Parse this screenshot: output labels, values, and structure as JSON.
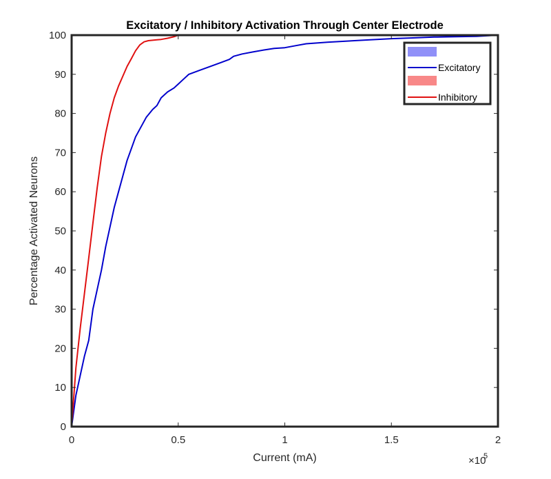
{
  "chart_data": {
    "type": "line",
    "title": "Excitatory / Inhibitory Activation Through Center Electrode",
    "xlabel": "Current (mA)",
    "ylabel": "Percentage Activated Neurons",
    "x_exponent_label": "×10",
    "x_exponent_power": "5",
    "xlim": [
      0,
      2
    ],
    "ylim": [
      0,
      100
    ],
    "x_ticks": [
      0,
      0.5,
      1,
      1.5,
      2
    ],
    "x_tick_labels": [
      "0",
      "0.5",
      "1",
      "1.5",
      "2"
    ],
    "y_ticks": [
      0,
      10,
      20,
      30,
      40,
      50,
      60,
      70,
      80,
      90,
      100
    ],
    "y_tick_labels": [
      "0",
      "10",
      "20",
      "30",
      "40",
      "50",
      "60",
      "70",
      "80",
      "90",
      "100"
    ],
    "grid": false,
    "legend_position": "top-right",
    "legend": [
      {
        "label": "",
        "kind": "patch",
        "color": "#9090f8"
      },
      {
        "label": "Excitatory",
        "kind": "line",
        "color": "#0000cc"
      },
      {
        "label": "",
        "kind": "patch",
        "color": "#f88888"
      },
      {
        "label": "Inhibitory",
        "kind": "line",
        "color": "#e01010"
      }
    ],
    "series": [
      {
        "name": "Excitatory",
        "color": "#0000cc",
        "x": [
          0,
          0.02,
          0.04,
          0.06,
          0.08,
          0.1,
          0.12,
          0.14,
          0.16,
          0.18,
          0.2,
          0.22,
          0.24,
          0.26,
          0.28,
          0.3,
          0.32,
          0.35,
          0.38,
          0.4,
          0.42,
          0.45,
          0.48,
          0.5,
          0.52,
          0.55,
          0.6,
          0.65,
          0.7,
          0.74,
          0.76,
          0.8,
          0.85,
          0.9,
          0.95,
          1.0,
          1.05,
          1.1,
          1.2,
          1.3,
          1.4,
          1.5,
          1.6,
          1.7,
          1.8,
          1.9,
          2.0
        ],
        "y": [
          0,
          8,
          13,
          18,
          22,
          30,
          35,
          40,
          46,
          51,
          56,
          60,
          64,
          68,
          71,
          74,
          76,
          79,
          81,
          82,
          84,
          85.5,
          86.5,
          87.5,
          88.5,
          90,
          91,
          92,
          93,
          93.8,
          94.6,
          95.2,
          95.7,
          96.2,
          96.6,
          96.8,
          97.3,
          97.8,
          98.2,
          98.5,
          98.8,
          99.1,
          99.3,
          99.5,
          99.6,
          99.7,
          100
        ]
      },
      {
        "name": "Inhibitory",
        "color": "#e01010",
        "x": [
          0,
          0.02,
          0.04,
          0.06,
          0.08,
          0.1,
          0.12,
          0.14,
          0.16,
          0.18,
          0.2,
          0.22,
          0.24,
          0.26,
          0.28,
          0.3,
          0.32,
          0.34,
          0.36,
          0.38,
          0.4,
          0.42,
          0.45,
          0.48,
          0.5
        ],
        "y": [
          0,
          15,
          25,
          34,
          43,
          52,
          61,
          69,
          75,
          80,
          84,
          87,
          89.5,
          92,
          94,
          96,
          97.5,
          98.3,
          98.6,
          98.7,
          98.8,
          98.9,
          99.2,
          99.6,
          100
        ]
      }
    ]
  }
}
